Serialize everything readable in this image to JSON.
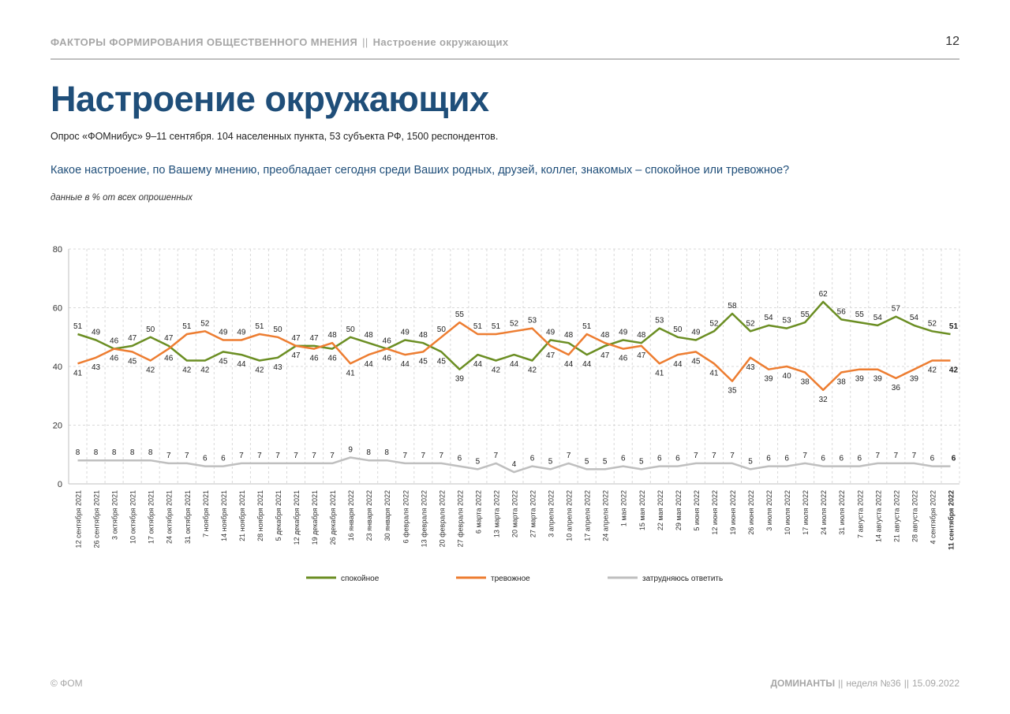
{
  "header": {
    "section": "ФАКТОРЫ ФОРМИРОВАНИЯ ОБЩЕСТВЕННОГО МНЕНИЯ",
    "separator": "||",
    "subsection": "Настроение окружающих",
    "page_number": "12"
  },
  "title": "Настроение окружающих",
  "survey_info": "Опрос «ФОМнибус» 9–11 сентября. 104 населенных пункта, 53 субъекта РФ, 1500 респондентов.",
  "question": "Какое настроение, по Вашему мнению, преобладает сегодня среди Ваших родных, друзей, коллег, знакомых – спокойное или тревожное?",
  "units_note": "данные в % от всех опрошенных",
  "footer": {
    "left": "© ФОМ",
    "brand": "ДОМИНАНТЫ",
    "separator": "||",
    "week": "неделя №36",
    "date": "15.09.2022"
  },
  "colors": {
    "calm": "#6b8e23",
    "anxious": "#ed7d31",
    "hard": "#bfbfbf",
    "grid": "#d9d9d9"
  },
  "chart_data": {
    "type": "line",
    "title": "",
    "xlabel": "",
    "ylabel": "",
    "ylim": [
      0,
      80
    ],
    "yticks": [
      0,
      20,
      40,
      60,
      80
    ],
    "grid": true,
    "legend": "bottom",
    "x": [
      "12 сентября 2021",
      "26 сентября 2021",
      "3 октября 2021",
      "10 октября 2021",
      "17 октября 2021",
      "24 октября 2021",
      "31 октября 2021",
      "7 ноября 2021",
      "14 ноября 2021",
      "21 ноября 2021",
      "28 ноября 2021",
      "5 декабря 2021",
      "12 декабря 2021",
      "19 декабря 2021",
      "26 декабря 2021",
      "16 января 2022",
      "23 января 2022",
      "30 января 2022",
      "6 февраля 2022",
      "13 февраля 2022",
      "20 февраля 2022",
      "27 февраля 2022",
      "6 марта 2022",
      "13 марта 2022",
      "20 марта 2022",
      "27 марта 2022",
      "3 апреля 2022",
      "10 апреля 2022",
      "17 апреля 2022",
      "24 апреля 2022",
      "1 мая 2022",
      "15 мая 2022",
      "22 мая 2022",
      "29 мая 2022",
      "5 июня 2022",
      "12 июня 2022",
      "19 июня 2022",
      "26 июня 2022",
      "3 июля 2022",
      "10 июля 2022",
      "17 июля 2022",
      "24 июля 2022",
      "31 июля 2022",
      "7 августа 2022",
      "14 августа 2022",
      "21 августа 2022",
      "28 августа 2022",
      "4 сентября 2022",
      "11 сентября 2022"
    ],
    "series": [
      {
        "name": "спокойное",
        "color": "#6b8e23",
        "values": [
          51,
          49,
          46,
          47,
          50,
          47,
          42,
          42,
          45,
          44,
          42,
          43,
          47,
          47,
          46,
          50,
          48,
          46,
          49,
          48,
          45,
          39,
          44,
          42,
          44,
          42,
          49,
          48,
          44,
          47,
          49,
          48,
          53,
          50,
          49,
          52,
          58,
          52,
          54,
          53,
          55,
          62,
          56,
          55,
          54,
          57,
          54,
          52,
          51
        ]
      },
      {
        "name": "тревожное",
        "color": "#ed7d31",
        "values": [
          41,
          43,
          46,
          45,
          42,
          46,
          51,
          52,
          49,
          49,
          51,
          50,
          47,
          46,
          48,
          41,
          44,
          46,
          44,
          45,
          50,
          55,
          51,
          51,
          52,
          53,
          47,
          44,
          51,
          48,
          46,
          47,
          41,
          44,
          45,
          41,
          35,
          43,
          39,
          40,
          38,
          32,
          38,
          39,
          39,
          36,
          39,
          42,
          42
        ]
      },
      {
        "name": "затрудняюсь ответить",
        "color": "#bfbfbf",
        "values": [
          8,
          8,
          8,
          8,
          8,
          7,
          7,
          6,
          6,
          7,
          7,
          7,
          7,
          7,
          7,
          9,
          8,
          8,
          7,
          7,
          7,
          6,
          5,
          7,
          4,
          6,
          5,
          7,
          5,
          5,
          6,
          5,
          6,
          6,
          7,
          7,
          7,
          5,
          6,
          6,
          7,
          6,
          6,
          6,
          7,
          7,
          7,
          6,
          6
        ]
      }
    ]
  }
}
